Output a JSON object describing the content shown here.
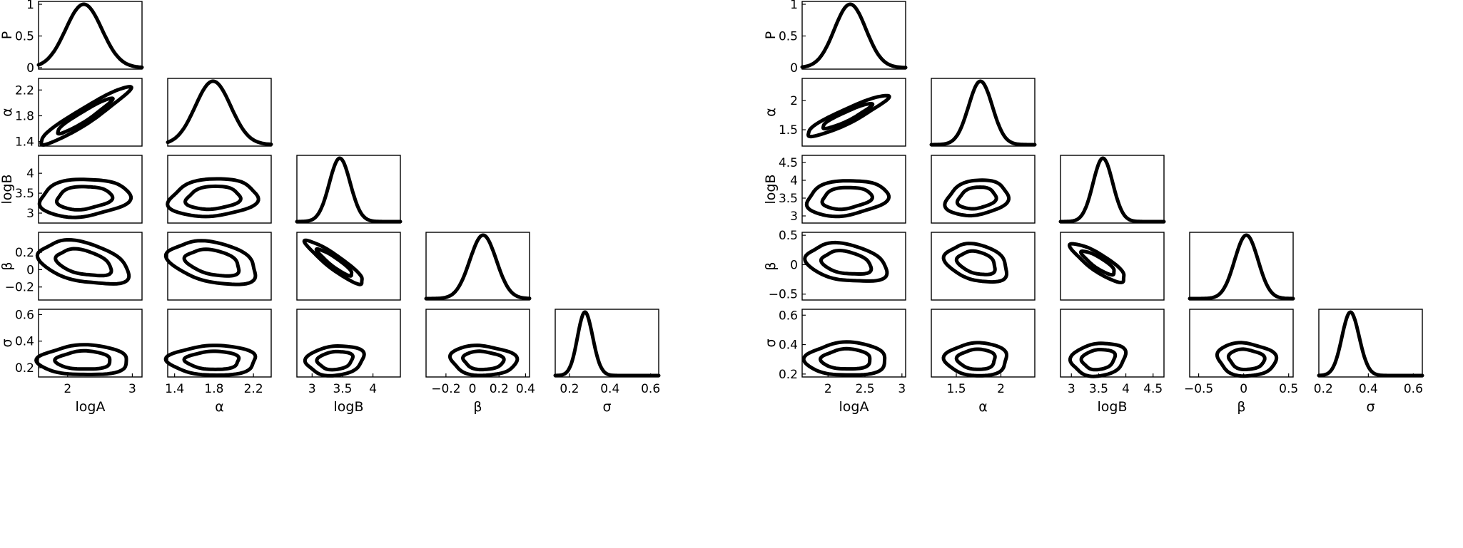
{
  "chart_data": [
    {
      "type": "triangle-corner",
      "panel": "left",
      "params": [
        "logA",
        "α",
        "logB",
        "β",
        "σ"
      ],
      "diag_ylabel": "P",
      "diag_ylim": [
        0,
        1
      ],
      "diag_yticks": [
        "0",
        "0.5",
        "1"
      ],
      "ranges": [
        [
          1.55,
          3.15
        ],
        [
          1.33,
          2.38
        ],
        [
          2.75,
          4.45
        ],
        [
          -0.35,
          0.43
        ],
        [
          0.13,
          0.64
        ]
      ],
      "ticks": [
        [
          "2",
          "3"
        ],
        [
          "1.4",
          "1.8",
          "2.2"
        ],
        [
          "3",
          "3.5",
          "4"
        ],
        [
          "−0.2",
          "0",
          "0.2",
          "0.4"
        ],
        [
          "0.2",
          "0.4",
          "0.6"
        ]
      ],
      "tick_values": [
        [
          2,
          3
        ],
        [
          1.4,
          1.8,
          2.2
        ],
        [
          3,
          3.5,
          4
        ],
        [
          -0.2,
          0,
          0.2,
          0.4
        ],
        [
          0.2,
          0.4,
          0.6
        ]
      ],
      "marginals": [
        {
          "mean": 2.25,
          "sd": 0.28,
          "skew": 0
        },
        {
          "mean": 1.79,
          "sd": 0.18,
          "skew": 0
        },
        {
          "mean": 3.38,
          "sd": 0.19,
          "skew": 0.6
        },
        {
          "mean": 0.08,
          "sd": 0.1,
          "skew": 0
        },
        {
          "mean": 0.255,
          "sd": 0.045,
          "skew": 0.9
        }
      ],
      "correlations": [
        [
          1,
          0.95,
          0.15,
          -0.4,
          0
        ],
        [
          0.95,
          1,
          0.15,
          -0.35,
          0
        ],
        [
          0.15,
          0.15,
          1,
          -0.92,
          0.15
        ],
        [
          -0.4,
          -0.35,
          -0.92,
          1,
          -0.1
        ],
        [
          0,
          0,
          0.15,
          -0.1,
          1
        ]
      ]
    },
    {
      "type": "triangle-corner",
      "panel": "right",
      "params": [
        "logA",
        "α",
        "logB",
        "β",
        "σ"
      ],
      "diag_ylabel": "P",
      "diag_ylim": [
        0,
        1
      ],
      "diag_yticks": [
        "0",
        "0.5",
        "1"
      ],
      "ranges": [
        [
          1.65,
          3.05
        ],
        [
          1.22,
          2.38
        ],
        [
          2.8,
          4.7
        ],
        [
          -0.6,
          0.55
        ],
        [
          0.18,
          0.64
        ]
      ],
      "ticks": [
        [
          "2",
          "2.5",
          "3"
        ],
        [
          "1.5",
          "2"
        ],
        [
          "3",
          "3.5",
          "4",
          "4.5"
        ],
        [
          "−0.5",
          "0",
          "0.5"
        ],
        [
          "0.2",
          "0.4",
          "0.6"
        ]
      ],
      "tick_values": [
        [
          2,
          2.5,
          3
        ],
        [
          1.5,
          2
        ],
        [
          3,
          3.5,
          4,
          4.5
        ],
        [
          -0.5,
          0,
          0.5
        ],
        [
          0.2,
          0.4,
          0.6
        ]
      ],
      "yticks_alpha": [
        "1.5",
        "2"
      ],
      "marginals": [
        {
          "mean": 2.25,
          "sd": 0.22,
          "skew": 0.3
        },
        {
          "mean": 1.73,
          "sd": 0.14,
          "skew": 0.4
        },
        {
          "mean": 3.5,
          "sd": 0.2,
          "skew": 0.6
        },
        {
          "mean": 0.03,
          "sd": 0.13,
          "skew": 0
        },
        {
          "mean": 0.3,
          "sd": 0.045,
          "skew": 0.8
        }
      ],
      "correlations": [
        [
          1,
          0.92,
          0.2,
          -0.3,
          0
        ],
        [
          0.92,
          1,
          0.2,
          -0.3,
          0
        ],
        [
          0.2,
          0.2,
          1,
          -0.85,
          0.15
        ],
        [
          -0.3,
          -0.3,
          -0.85,
          1,
          -0.1
        ],
        [
          0,
          0,
          0.15,
          -0.1,
          1
        ]
      ]
    }
  ]
}
